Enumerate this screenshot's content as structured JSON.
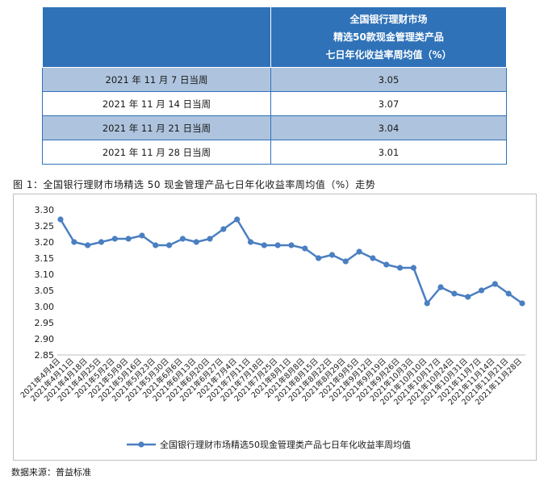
{
  "table": {
    "header_lines": [
      "全国银行理财市场",
      "精选50款现金管理类产品",
      "七日年化收益率周均值（%）"
    ],
    "rows": [
      {
        "week": "2021 年 11 月 7 日当周",
        "value": "3.05"
      },
      {
        "week": "2021 年 11 月 14 日当周",
        "value": "3.07"
      },
      {
        "week": "2021 年 11 月 21 日当周",
        "value": "3.04"
      },
      {
        "week": "2021 年 11 月 28 日当周",
        "value": "3.01"
      }
    ]
  },
  "caption": "图 1：全国银行理财市场精选 50 现金管理产品七日年化收益率周均值（%）走势",
  "source": "数据来源：普益标准",
  "colors": {
    "series": "#4a7fc1",
    "table_header": "#2f72b8",
    "table_alt": "#aec4de"
  },
  "chart_data": {
    "type": "line",
    "title": "",
    "xlabel": "",
    "ylabel": "",
    "ylim": [
      2.85,
      3.3
    ],
    "yticks": [
      "3.30",
      "3.25",
      "3.20",
      "3.15",
      "3.10",
      "3.05",
      "3.00",
      "2.95",
      "2.90",
      "2.85"
    ],
    "grid": false,
    "legend_position": "bottom",
    "categories": [
      "2021年4月4日",
      "2021年4月11日",
      "2021年4月18日",
      "2021年4月25日",
      "2021年5月2日",
      "2021年5月9日",
      "2021年5月16日",
      "2021年5月23日",
      "2021年5月30日",
      "2021年6月6日",
      "2021年6月13日",
      "2021年6月20日",
      "2021年6月27日",
      "2021年7月4日",
      "2021年7月11日",
      "2021年7月18日",
      "2021年7月25日",
      "2021年8月1日",
      "2021年8月8日",
      "2021年8月15日",
      "2021年8月22日",
      "2021年8月29日",
      "2021年9月5日",
      "2021年9月12日",
      "2021年9月19日",
      "2021年9月26日",
      "2021年10月3日",
      "2021年10月10日",
      "2021年10月17日",
      "2021年10月24日",
      "2021年10月31日",
      "2021年11月7日",
      "2021年11月14日",
      "2021年11月21日",
      "2021年11月28日"
    ],
    "series": [
      {
        "name": "全国银行理财市场精选50现金管理类产品七日年化收益率周均值",
        "values": [
          3.27,
          3.2,
          3.19,
          3.2,
          3.21,
          3.21,
          3.22,
          3.19,
          3.19,
          3.21,
          3.2,
          3.21,
          3.24,
          3.27,
          3.2,
          3.19,
          3.19,
          3.19,
          3.18,
          3.15,
          3.16,
          3.14,
          3.17,
          3.15,
          3.13,
          3.12,
          3.12,
          3.01,
          3.06,
          3.04,
          3.03,
          3.05,
          3.07,
          3.04,
          3.01
        ]
      }
    ]
  }
}
